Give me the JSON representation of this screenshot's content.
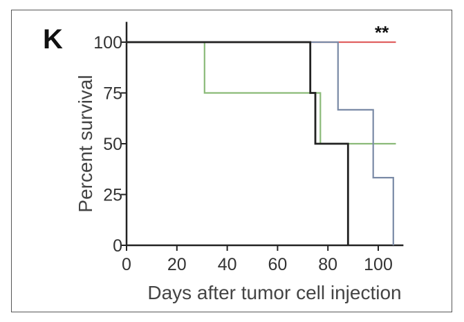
{
  "panel_label": "K",
  "chart_data": {
    "type": "line",
    "subtype": "kaplan-meier step",
    "xlabel": "Days after tumor cell injection",
    "ylabel": "Percent survival",
    "xlim": [
      0,
      110
    ],
    "ylim": [
      0,
      110
    ],
    "xticks": [
      0,
      20,
      40,
      60,
      80,
      100
    ],
    "yticks": [
      0,
      25,
      50,
      75,
      100
    ],
    "grid": false,
    "annotation": "**",
    "series": [
      {
        "color": "#e06060",
        "points": [
          [
            0,
            100
          ],
          [
            107,
            100
          ]
        ]
      },
      {
        "color": "#8aba78",
        "points": [
          [
            0,
            100
          ],
          [
            31,
            100
          ],
          [
            31,
            75
          ],
          [
            77,
            75
          ],
          [
            77,
            50
          ],
          [
            107,
            50
          ]
        ]
      },
      {
        "color": "#7a8aa6",
        "points": [
          [
            0,
            100
          ],
          [
            84,
            100
          ],
          [
            84,
            66.7
          ],
          [
            98,
            66.7
          ],
          [
            98,
            33.3
          ],
          [
            106,
            33.3
          ],
          [
            106,
            0
          ]
        ]
      },
      {
        "color": "#222222",
        "points": [
          [
            0,
            100
          ],
          [
            73,
            100
          ],
          [
            73,
            75
          ],
          [
            75,
            75
          ],
          [
            75,
            50
          ],
          [
            88,
            50
          ],
          [
            88,
            0
          ]
        ]
      }
    ]
  }
}
